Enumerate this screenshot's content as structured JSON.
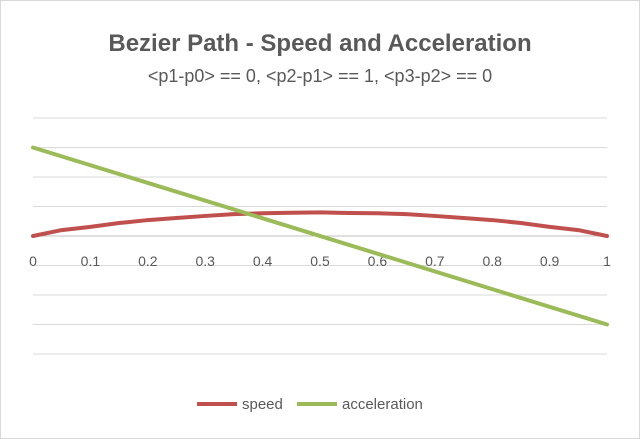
{
  "chart_data": {
    "type": "line",
    "title": "Bezier Path - Speed and Acceleration",
    "subtitle": "<p1-p0> == 0, <p2-p1> == 1, <p3-p2> == 0",
    "xlabel": "",
    "ylabel": "",
    "xlim": [
      0,
      1
    ],
    "ylim": [
      -4,
      4
    ],
    "y_gridlines": [
      -4,
      -3,
      -2,
      -1,
      0,
      1,
      2,
      3,
      4
    ],
    "x_ticks": [
      "0",
      "0.1",
      "0.2",
      "0.3",
      "0.4",
      "0.5",
      "0.6",
      "0.7",
      "0.8",
      "0.9",
      "1"
    ],
    "grid": true,
    "legend_position": "bottom",
    "series": [
      {
        "name": "speed",
        "color": "#c0504d",
        "x": [
          0,
          0.05,
          0.1,
          0.15,
          0.2,
          0.25,
          0.3,
          0.35,
          0.4,
          0.45,
          0.5,
          0.55,
          0.6,
          0.65,
          0.7,
          0.75,
          0.8,
          0.85,
          0.9,
          0.95,
          1
        ],
        "y": [
          0,
          0.2,
          0.31,
          0.44,
          0.54,
          0.61,
          0.68,
          0.74,
          0.77,
          0.79,
          0.8,
          0.78,
          0.77,
          0.74,
          0.68,
          0.61,
          0.54,
          0.44,
          0.31,
          0.2,
          0
        ]
      },
      {
        "name": "acceleration",
        "color": "#9bbb59",
        "x": [
          0,
          1
        ],
        "y": [
          3,
          -3
        ]
      }
    ]
  }
}
